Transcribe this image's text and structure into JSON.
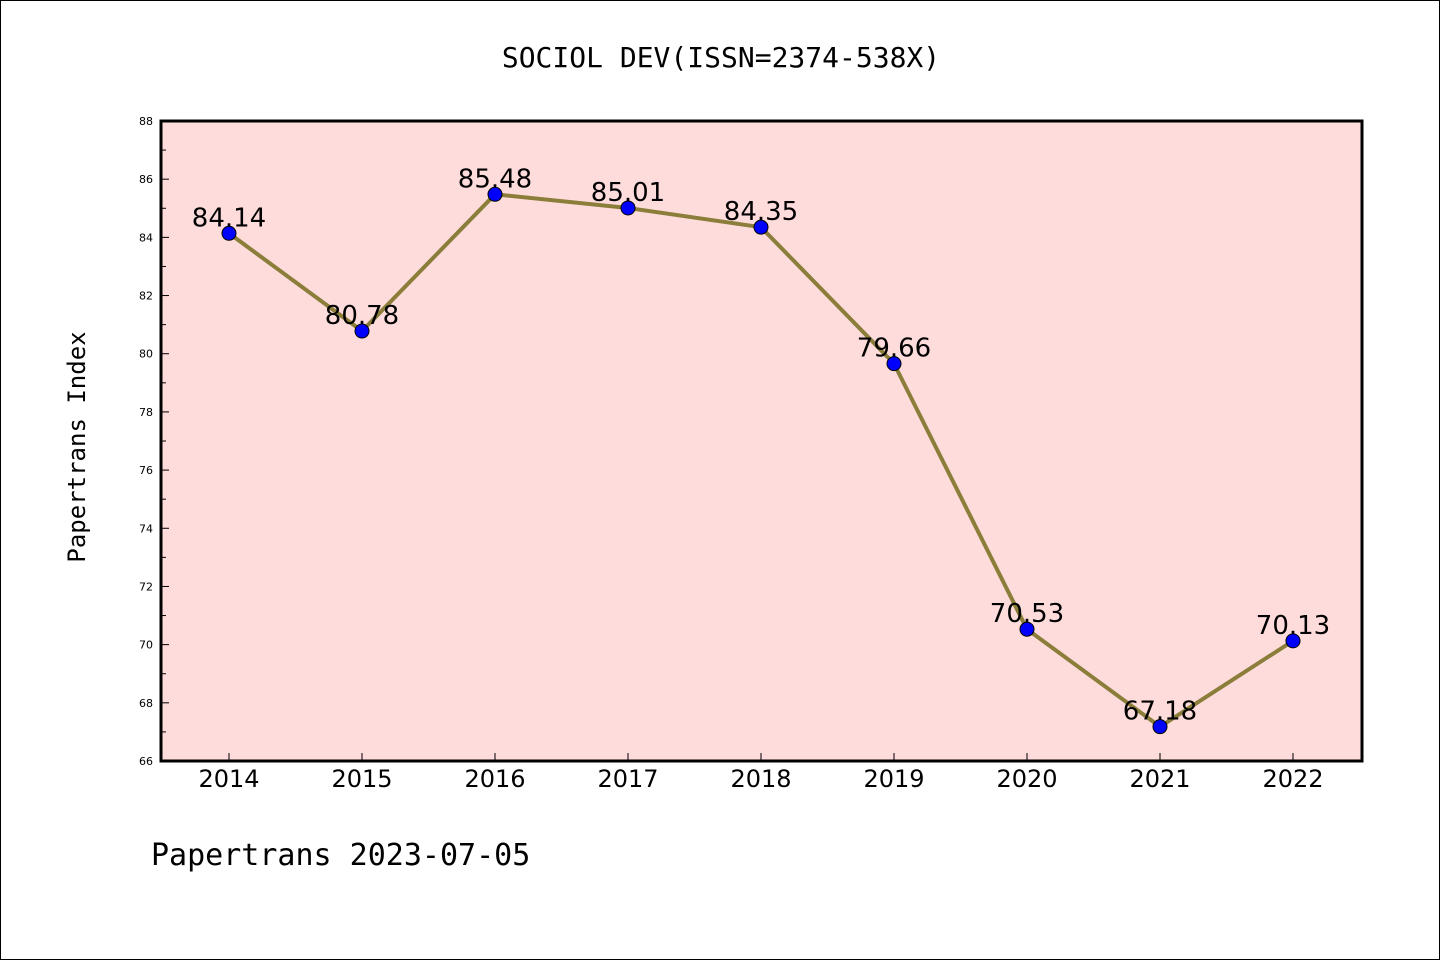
{
  "chart_data": {
    "type": "line",
    "title": "SOCIOL DEV(ISSN=2374-538X)",
    "ylabel": "Papertrans Index",
    "xlabel": "",
    "categories": [
      "2014",
      "2015",
      "2016",
      "2017",
      "2018",
      "2019",
      "2020",
      "2021",
      "2022"
    ],
    "series": [
      {
        "values": [
          84.14,
          80.78,
          85.48,
          85.01,
          84.35,
          79.66,
          70.53,
          67.18,
          70.13
        ],
        "data_labels": [
          "84.14",
          "80.78",
          "85.48",
          "85.01",
          "84.35",
          "79.66",
          "70.53",
          "67.18",
          "70.13"
        ],
        "line_color": "#8b7d3a",
        "marker_color": "#0000ff"
      }
    ],
    "ylim": [
      66,
      88
    ],
    "yticks": [
      "66",
      "68",
      "70",
      "72",
      "74",
      "76",
      "78",
      "80",
      "82",
      "84",
      "86",
      "88"
    ],
    "grid": false,
    "plot_background": "#ffdcdc"
  },
  "footer": "Papertrans 2023-07-05"
}
